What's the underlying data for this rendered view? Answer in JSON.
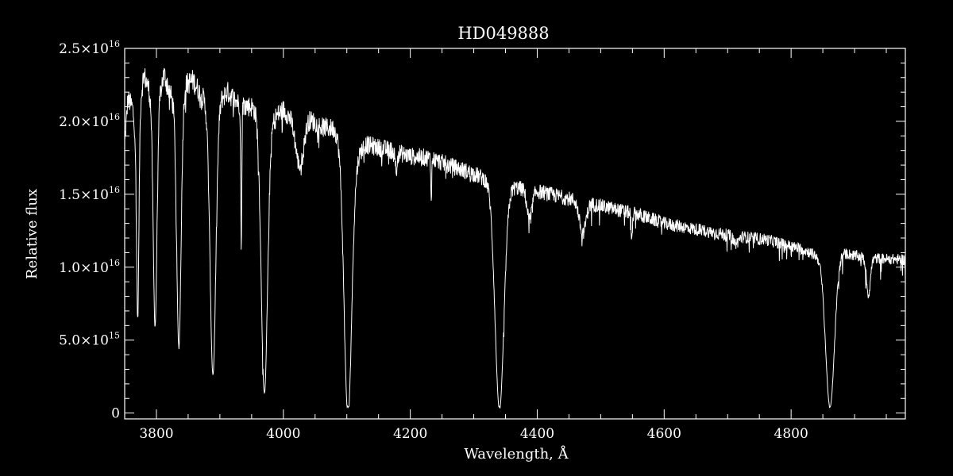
{
  "chart_data": {
    "type": "line",
    "title": "HD049888",
    "xlabel": "Wavelength, Å",
    "ylabel": "Relative flux",
    "xlim": [
      3750,
      4980
    ],
    "ylim": [
      -400000000000000,
      25000000000000000
    ],
    "x_ticks": [
      {
        "value": 3800,
        "label": "3800"
      },
      {
        "value": 4000,
        "label": "4000"
      },
      {
        "value": 4200,
        "label": "4200"
      },
      {
        "value": 4400,
        "label": "4400"
      },
      {
        "value": 4600,
        "label": "4600"
      },
      {
        "value": 4800,
        "label": "4800"
      }
    ],
    "y_ticks": [
      {
        "value": 0,
        "mantissa": "0",
        "exponent": ""
      },
      {
        "value": 5000000000000000,
        "mantissa": "5.0×10",
        "exponent": "15"
      },
      {
        "value": 10000000000000000,
        "mantissa": "1.0×10",
        "exponent": "16"
      },
      {
        "value": 15000000000000000,
        "mantissa": "1.5×10",
        "exponent": "16"
      },
      {
        "value": 20000000000000000,
        "mantissa": "2.0×10",
        "exponent": "16"
      },
      {
        "value": 25000000000000000,
        "mantissa": "2.5×10",
        "exponent": "16"
      }
    ],
    "x_minor_step": 50,
    "y_minor_step": 1000000000000000,
    "line_color": "#ffffff",
    "background": "#000000",
    "grid": false,
    "continuum": [
      [
        3750,
        1.85e+16
      ],
      [
        3755,
        2.15e+16
      ],
      [
        3762,
        2.1e+16
      ],
      [
        3768,
        1.9e+16
      ],
      [
        3780,
        2.32e+16
      ],
      [
        3790,
        2.2e+16
      ],
      [
        3805,
        2.2e+16
      ],
      [
        3812,
        2.32e+16
      ],
      [
        3825,
        2.15e+16
      ],
      [
        3845,
        2.25e+16
      ],
      [
        3858,
        2.28e+16
      ],
      [
        3870,
        2.18e+16
      ],
      [
        3885,
        2.1e+16
      ],
      [
        3900,
        2.15e+16
      ],
      [
        3912,
        2.2e+16
      ],
      [
        3930,
        2.12e+16
      ],
      [
        3950,
        2.1e+16
      ],
      [
        3980,
        2e+16
      ],
      [
        4000,
        2.08e+16
      ],
      [
        4020,
        1.98e+16
      ],
      [
        4040,
        2.02e+16
      ],
      [
        4060,
        1.96e+16
      ],
      [
        4080,
        1.95e+16
      ],
      [
        4090,
        1.88e+16
      ],
      [
        4115,
        1.76e+16
      ],
      [
        4130,
        1.84e+16
      ],
      [
        4150,
        1.82e+16
      ],
      [
        4170,
        1.8e+16
      ],
      [
        4200,
        1.76e+16
      ],
      [
        4230,
        1.75e+16
      ],
      [
        4260,
        1.7e+16
      ],
      [
        4300,
        1.64e+16
      ],
      [
        4320,
        1.6e+16
      ],
      [
        4360,
        1.55e+16
      ],
      [
        4400,
        1.52e+16
      ],
      [
        4440,
        1.48e+16
      ],
      [
        4500,
        1.42e+16
      ],
      [
        4560,
        1.36e+16
      ],
      [
        4600,
        1.3e+16
      ],
      [
        4650,
        1.26e+16
      ],
      [
        4700,
        1.22e+16
      ],
      [
        4760,
        1.19e+16
      ],
      [
        4820,
        1.12e+16
      ],
      [
        4840,
        1.08e+16
      ],
      [
        4880,
        1.1e+16
      ],
      [
        4920,
        1.06e+16
      ],
      [
        4940,
        1.06e+16
      ],
      [
        4980,
        1.05e+16
      ]
    ],
    "absorption_lines": [
      {
        "center": 3770.6,
        "depth": 1.35e+16,
        "width": 1.8
      },
      {
        "center": 3797.9,
        "depth": 1.6e+16,
        "width": 3.0
      },
      {
        "center": 3835.4,
        "depth": 1.75e+16,
        "width": 3.5
      },
      {
        "center": 3889.1,
        "depth": 1.85e+16,
        "width": 4.5
      },
      {
        "center": 3933.7,
        "depth": 1e+16,
        "width": 0.8
      },
      {
        "center": 3970.1,
        "depth": 1.9e+16,
        "width": 5.0
      },
      {
        "center": 4026.2,
        "depth": 3000000000000000.0,
        "width": 6.0
      },
      {
        "center": 4101.7,
        "depth": 1.85e+16,
        "width": 6.0
      },
      {
        "center": 4178.0,
        "depth": 1800000000000000.0,
        "width": 1.0
      },
      {
        "center": 4233.0,
        "depth": 2500000000000000.0,
        "width": 0.8
      },
      {
        "center": 4340.5,
        "depth": 1.55e+16,
        "width": 7.0
      },
      {
        "center": 4387.9,
        "depth": 2000000000000000.0,
        "width": 4.0
      },
      {
        "center": 4471.5,
        "depth": 2200000000000000.0,
        "width": 5.0
      },
      {
        "center": 4549.0,
        "depth": 2000000000000000.0,
        "width": 1.0
      },
      {
        "center": 4713.0,
        "depth": 500000000000000.0,
        "width": 4.0
      },
      {
        "center": 4861.3,
        "depth": 1.05e+16,
        "width": 7.0
      },
      {
        "center": 4921.9,
        "depth": 2500000000000000.0,
        "width": 3.0
      }
    ]
  }
}
